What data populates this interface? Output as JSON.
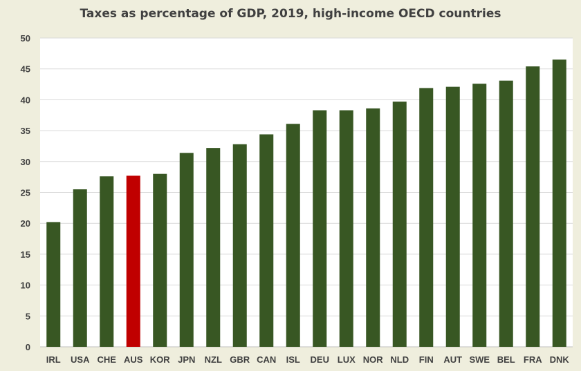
{
  "chart_data": {
    "type": "bar",
    "title": "Taxes as percentage of GDP, 2019, high-income OECD countries",
    "xlabel": "",
    "ylabel": "",
    "ylim": [
      0,
      50
    ],
    "yticks": [
      0,
      5,
      10,
      15,
      20,
      25,
      30,
      35,
      40,
      45,
      50
    ],
    "grid": true,
    "legend": "none",
    "categories": [
      "IRL",
      "USA",
      "CHE",
      "AUS",
      "KOR",
      "JPN",
      "NZL",
      "GBR",
      "CAN",
      "ISL",
      "DEU",
      "LUX",
      "NOR",
      "NLD",
      "FIN",
      "AUT",
      "SWE",
      "BEL",
      "FRA",
      "DNK"
    ],
    "values": [
      20.2,
      25.5,
      27.6,
      27.7,
      28.0,
      31.4,
      32.2,
      32.8,
      34.4,
      36.1,
      38.3,
      38.3,
      38.6,
      39.7,
      41.9,
      42.1,
      42.6,
      43.1,
      45.4,
      46.5
    ],
    "colors": {
      "default_bar": "#385723",
      "highlight_bar": "#c00000",
      "highlight_category": "AUS",
      "plot_background": "#ffffff",
      "page_background": "#efeedd",
      "grid": "#d9d9d9"
    }
  }
}
